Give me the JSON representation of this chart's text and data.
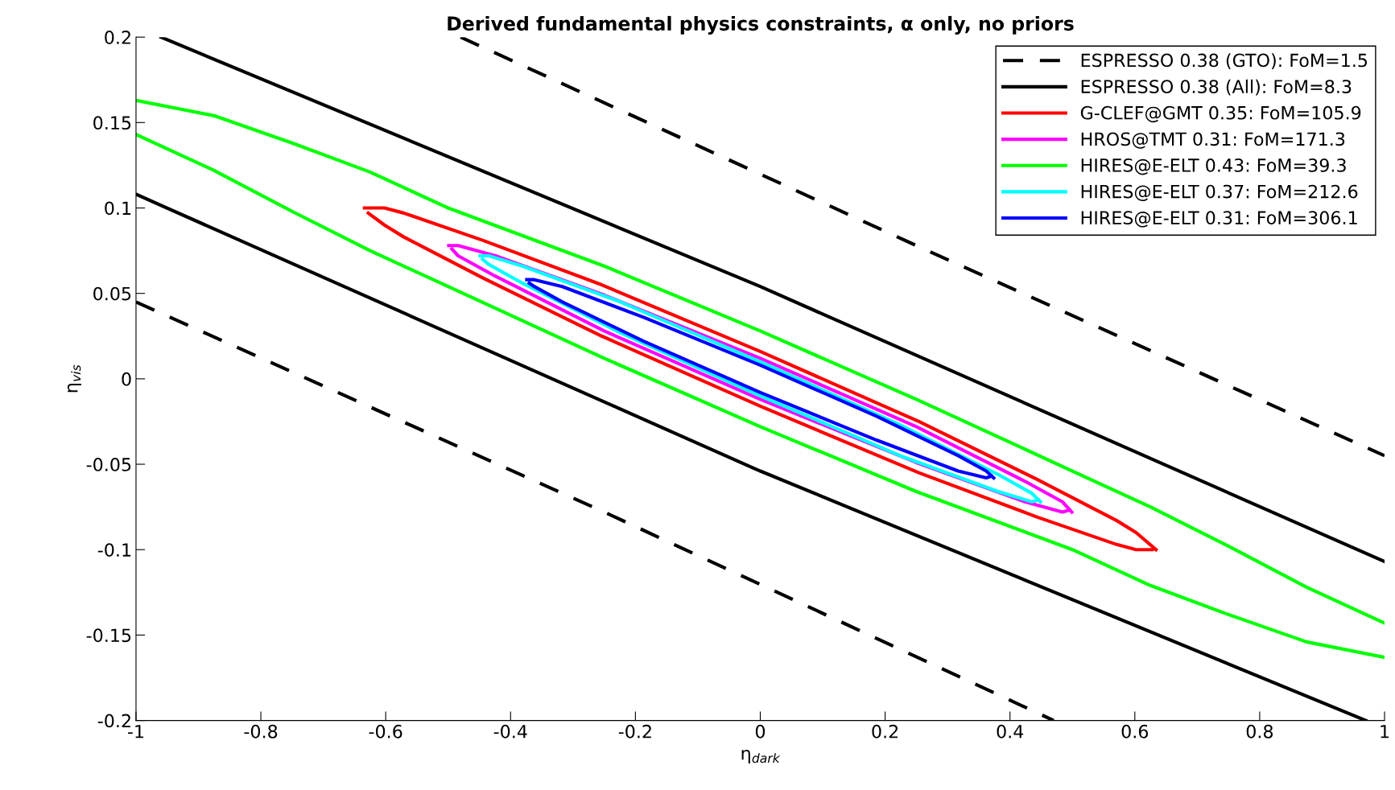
{
  "chart_data": {
    "type": "line",
    "title": "Derived fundamental physics constraints, α only, no priors",
    "xlabel": "η$_{dark}$",
    "ylabel": "η$_{vis}$",
    "xlim": [
      -1,
      1
    ],
    "ylim": [
      -0.2,
      0.2
    ],
    "xticks": [
      -1,
      -0.8,
      -0.6,
      -0.4,
      -0.2,
      0,
      0.2,
      0.4,
      0.6,
      0.8,
      1
    ],
    "yticks": [
      -0.2,
      -0.15,
      -0.1,
      -0.05,
      0,
      0.05,
      0.1,
      0.15,
      0.2
    ],
    "grid": false,
    "legend": "top right",
    "series": [
      {
        "name": "ESPRESSO 0.38 (GTO): FoM=1.5",
        "color": "#000000",
        "line_style": "dashed",
        "x": [
          -0.48,
          0.25,
          1
        ],
        "values": [
          0.2,
          0.078,
          -0.045
        ]
      },
      {
        "color": "#000000",
        "line_style": "dashed",
        "x": [
          -1,
          -0.25,
          0.47
        ],
        "values": [
          0.045,
          -0.078,
          -0.2
        ]
      },
      {
        "name": "ESPRESSO 0.38 (All): FoM=8.3",
        "color": "#000000",
        "x": [
          -0.96,
          0,
          1
        ],
        "values": [
          0.2,
          0.054,
          -0.107
        ]
      },
      {
        "color": "#000000",
        "x": [
          -1,
          0,
          0.97
        ],
        "values": [
          0.108,
          -0.054,
          -0.2
        ]
      },
      {
        "name": "G-CLEF@GMT 0.35: FoM=105.9",
        "color": "#ff0000",
        "x": [
          -0.634,
          -0.602,
          -0.571,
          -0.444,
          -0.254,
          0,
          0.254,
          0.444,
          0.571,
          0.602,
          0.634
        ],
        "values": [
          0.1,
          0.1,
          0.097,
          0.081,
          0.055,
          0.016,
          -0.025,
          -0.059,
          -0.083,
          -0.09,
          -0.1
        ]
      },
      {
        "color": "#ff0000",
        "x": [
          -0.628,
          -0.602,
          -0.571,
          -0.444,
          -0.254,
          0,
          0.254,
          0.444,
          0.571,
          0.602,
          0.628
        ],
        "values": [
          0.097,
          0.09,
          0.083,
          0.059,
          0.025,
          -0.016,
          -0.055,
          -0.081,
          -0.097,
          -0.1,
          -0.1
        ]
      },
      {
        "name": "HROS@TMT 0.31: FoM=171.3",
        "color": "#ff00ff",
        "x": [
          -0.499,
          -0.484,
          -0.424,
          -0.25,
          0,
          0.25,
          0.424,
          0.484,
          0.499
        ],
        "values": [
          0.078,
          0.078,
          0.072,
          0.049,
          0.012,
          -0.028,
          -0.06,
          -0.072,
          -0.078
        ]
      },
      {
        "color": "#ff00ff",
        "x": [
          -0.494,
          -0.484,
          -0.424,
          -0.25,
          0,
          0.25,
          0.424,
          0.484,
          0.494
        ],
        "values": [
          0.076,
          0.072,
          0.06,
          0.028,
          -0.012,
          -0.049,
          -0.072,
          -0.078,
          -0.077
        ]
      },
      {
        "name": "HIRES@E-ELT 0.43: FoM=39.3",
        "color": "#00ff00",
        "x": [
          -1,
          -0.875,
          -0.75,
          -0.625,
          -0.5,
          -0.25,
          0,
          0.25,
          0.5,
          0.625,
          0.75,
          0.875,
          1
        ],
        "values": [
          0.163,
          0.154,
          0.138,
          0.121,
          0.1,
          0.066,
          0.028,
          -0.012,
          -0.054,
          -0.075,
          -0.098,
          -0.122,
          -0.143
        ]
      },
      {
        "color": "#00ff00",
        "x": [
          -1,
          -0.875,
          -0.75,
          -0.625,
          -0.5,
          -0.25,
          0,
          0.25,
          0.5,
          0.625,
          0.75,
          0.875,
          1
        ],
        "values": [
          0.143,
          0.122,
          0.098,
          0.075,
          0.054,
          0.012,
          -0.028,
          -0.066,
          -0.1,
          -0.121,
          -0.138,
          -0.154,
          -0.163
        ]
      },
      {
        "name": "HIRES@E-ELT 0.37: FoM=212.6",
        "color": "#00ffff",
        "x": [
          -0.449,
          -0.435,
          -0.381,
          -0.224,
          0,
          0.224,
          0.381,
          0.435,
          0.449
        ],
        "values": [
          0.072,
          0.072,
          0.066,
          0.045,
          0.01,
          -0.027,
          -0.056,
          -0.067,
          -0.072
        ]
      },
      {
        "color": "#00ffff",
        "x": [
          -0.445,
          -0.435,
          -0.381,
          -0.224,
          0,
          0.224,
          0.381,
          0.435,
          0.445
        ],
        "values": [
          0.07,
          0.067,
          0.056,
          0.027,
          -0.01,
          -0.045,
          -0.066,
          -0.072,
          -0.071
        ]
      },
      {
        "name": "HIRES@E-ELT 0.31: FoM=306.1",
        "color": "#0000ff",
        "x": [
          -0.374,
          -0.362,
          -0.317,
          -0.187,
          0,
          0.187,
          0.317,
          0.362,
          0.374
        ],
        "values": [
          0.058,
          0.058,
          0.054,
          0.036,
          0.008,
          -0.022,
          -0.045,
          -0.054,
          -0.058
        ]
      },
      {
        "color": "#0000ff",
        "x": [
          -0.37,
          -0.362,
          -0.317,
          -0.187,
          0,
          0.187,
          0.317,
          0.362,
          0.37
        ],
        "values": [
          0.056,
          0.054,
          0.045,
          0.022,
          -0.008,
          -0.036,
          -0.054,
          -0.058,
          -0.057
        ]
      }
    ]
  }
}
